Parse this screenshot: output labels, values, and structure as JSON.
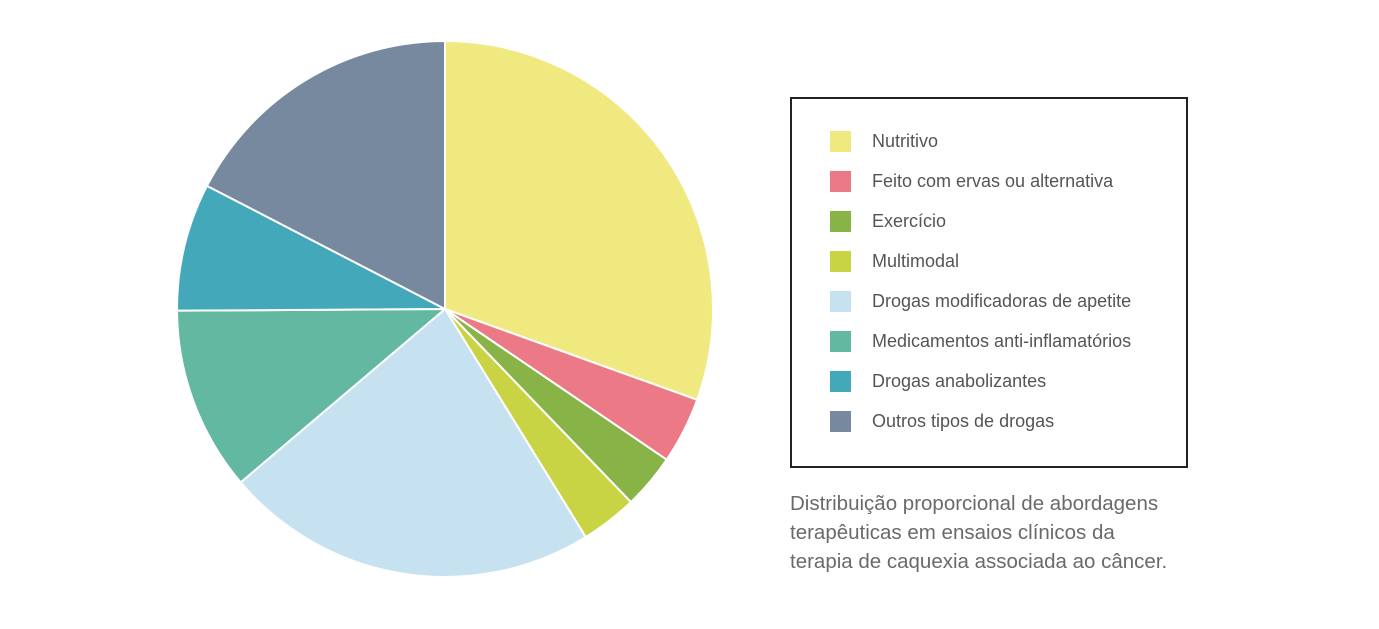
{
  "chart_data": {
    "type": "pie",
    "start_angle": "12 o'clock",
    "direction": "clockwise",
    "slices": [
      {
        "label": "Nutritivo",
        "value": 30.5,
        "color": "#efe97f"
      },
      {
        "label": "Feito com ervas ou alternativa",
        "value": 4.0,
        "color": "#ec7a86"
      },
      {
        "label": "Exercício",
        "value": 3.3,
        "color": "#88b447"
      },
      {
        "label": "Multimodal",
        "value": 3.4,
        "color": "#c9d444"
      },
      {
        "label": "Drogas modificadoras de apetite",
        "value": 22.6,
        "color": "#c6e2f0"
      },
      {
        "label": "Medicamentos anti-inflamatórios",
        "value": 11.1,
        "color": "#62b8a0"
      },
      {
        "label": "Drogas anabolizantes",
        "value": 7.7,
        "color": "#44a8bb"
      },
      {
        "label": "Outros tipos de drogas",
        "value": 17.4,
        "color": "#76899e"
      }
    ],
    "legend_position": "right"
  },
  "caption": {
    "lines": [
      "Distribuição proporcional de abordagens",
      "terapêuticas em ensaios clínicos da",
      "terapia de caquexia associada ao câncer."
    ]
  }
}
